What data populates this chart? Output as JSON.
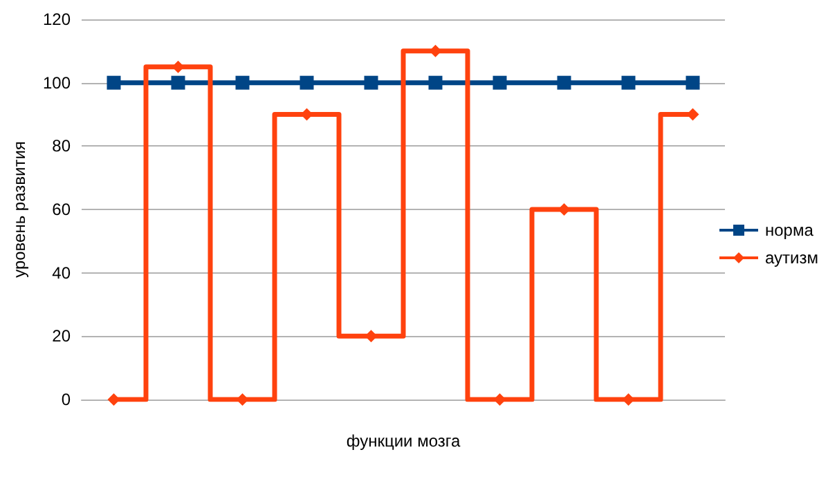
{
  "chart_data": {
    "type": "line",
    "xlabel": "функции мозга",
    "ylabel": "уровень развития",
    "categories": [
      null,
      null,
      null,
      null,
      null,
      null,
      null,
      null,
      null,
      null
    ],
    "series": [
      {
        "name": "норма",
        "color": "#004586",
        "marker": "square",
        "values": [
          100,
          100,
          100,
          100,
          100,
          100,
          100,
          100,
          100,
          100
        ]
      },
      {
        "name": "аутизм",
        "type": "step",
        "color": "#ff420e",
        "marker": "diamond",
        "values": [
          0,
          105,
          0,
          90,
          20,
          110,
          0,
          60,
          0,
          90
        ]
      }
    ],
    "ylim": [
      0,
      120
    ],
    "yticks": [
      0,
      20,
      40,
      60,
      80,
      100,
      120
    ],
    "grid": "y",
    "legend": "right",
    "tick_labels": "y"
  }
}
